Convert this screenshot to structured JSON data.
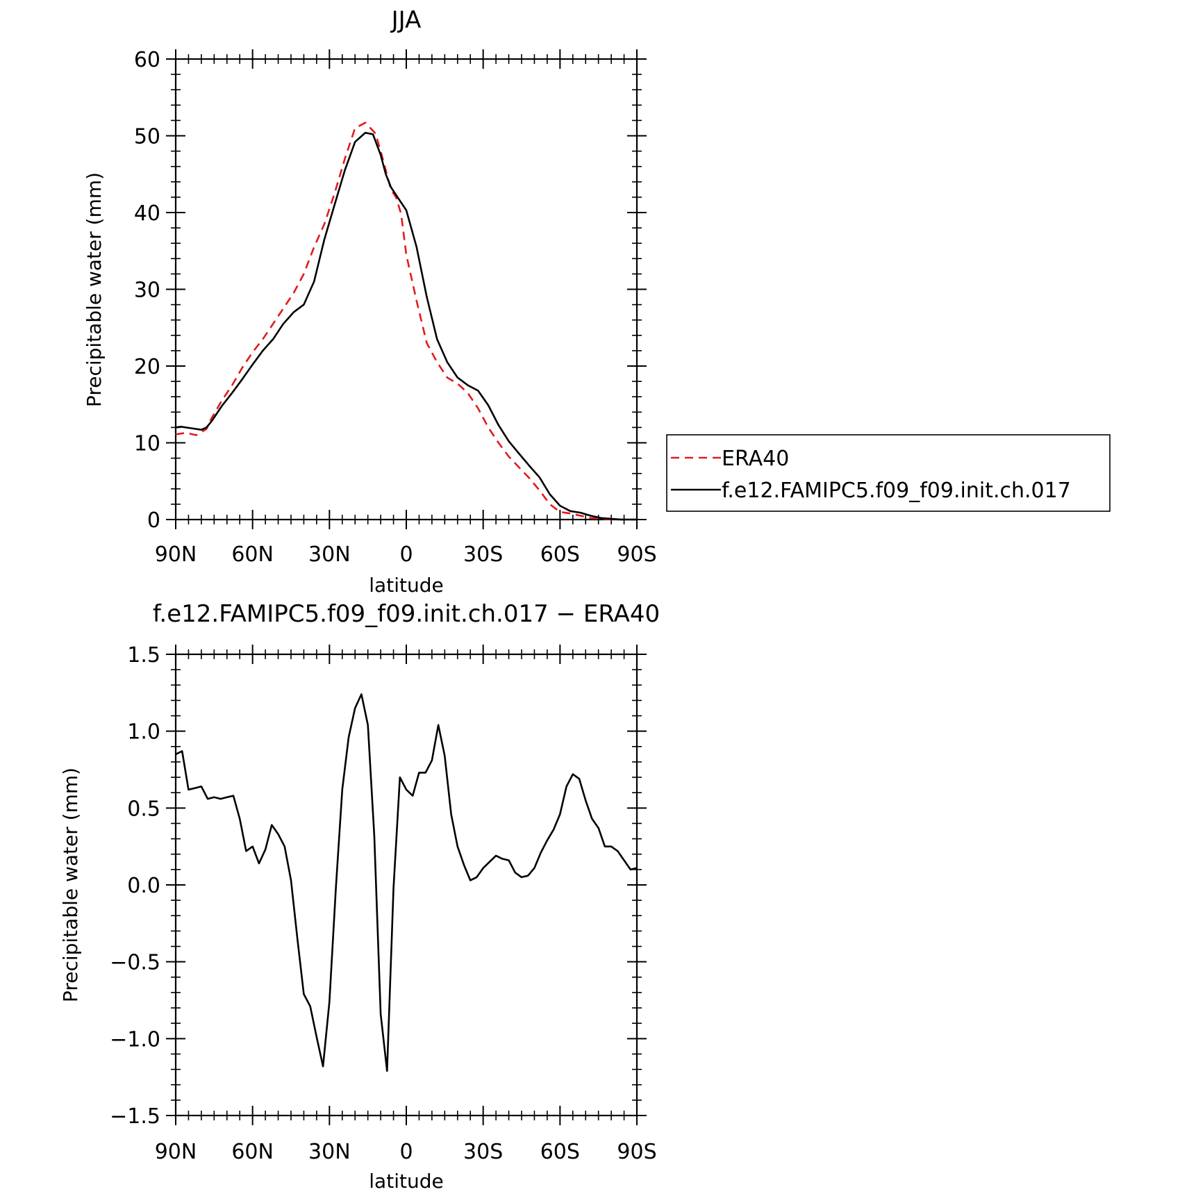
{
  "chart_data": [
    {
      "type": "line",
      "title": "JJA",
      "xlabel": "latitude",
      "ylabel": "Precipitable water (mm)",
      "xlim": [
        90,
        -90
      ],
      "ylim": [
        0,
        60
      ],
      "xticks": [
        {
          "value": 90,
          "label": "90N"
        },
        {
          "value": 60,
          "label": "60N"
        },
        {
          "value": 30,
          "label": "30N"
        },
        {
          "value": 0,
          "label": "0"
        },
        {
          "value": -30,
          "label": "30S"
        },
        {
          "value": -60,
          "label": "60S"
        },
        {
          "value": -90,
          "label": "90S"
        }
      ],
      "yticks": [
        {
          "value": 0,
          "label": "0"
        },
        {
          "value": 10,
          "label": "10"
        },
        {
          "value": 20,
          "label": "20"
        },
        {
          "value": 30,
          "label": "30"
        },
        {
          "value": 40,
          "label": "40"
        },
        {
          "value": 50,
          "label": "50"
        },
        {
          "value": 60,
          "label": "60"
        }
      ],
      "grid": false,
      "legend_position": "right",
      "series": [
        {
          "name": "ERA40",
          "color": "#e31a1c",
          "style": "dashed",
          "x": [
            90,
            86,
            82,
            78,
            76,
            72,
            68,
            64,
            60,
            56,
            52,
            48,
            44,
            40,
            36,
            32,
            28,
            24,
            20,
            16,
            12,
            10,
            8,
            6,
            4,
            2,
            0,
            -4,
            -8,
            -12,
            -16,
            -20,
            -24,
            -28,
            -32,
            -36,
            -40,
            -44,
            -48,
            -52,
            -56,
            -60,
            -64,
            -68,
            -72,
            -76,
            -80,
            -84,
            -88,
            -90
          ],
          "y": [
            11.1,
            11.3,
            11.0,
            11.8,
            13.2,
            15.5,
            17.5,
            19.8,
            21.8,
            23.5,
            25.5,
            27.5,
            29.5,
            32.0,
            35.5,
            38.5,
            42.5,
            47.0,
            51.0,
            51.7,
            50.3,
            48.0,
            45.5,
            43.0,
            42.0,
            39.8,
            34.5,
            28.5,
            23.0,
            20.5,
            18.5,
            17.7,
            16.5,
            14.5,
            12.0,
            10.0,
            8.2,
            6.8,
            5.4,
            3.8,
            2.0,
            1.0,
            0.8,
            0.5,
            0.2,
            0.1,
            0.0,
            0.0,
            0.0,
            0.0
          ]
        },
        {
          "name": "f.e12.FAMIPC5.f09_f09.init.ch.017",
          "color": "#000000",
          "style": "solid",
          "x": [
            90,
            88,
            84,
            80,
            78,
            76,
            72,
            68,
            64,
            60,
            56,
            52,
            48,
            44,
            40,
            36,
            32,
            28,
            24,
            20,
            16,
            13,
            10,
            8,
            6,
            4,
            0,
            -4,
            -8,
            -12,
            -16,
            -20,
            -24,
            -28,
            -32,
            -36,
            -40,
            -44,
            -48,
            -52,
            -56,
            -60,
            -64,
            -68,
            -72,
            -76,
            -80,
            -84,
            -88,
            -90
          ],
          "y": [
            12.0,
            12.1,
            11.9,
            11.7,
            12.0,
            12.8,
            14.8,
            16.5,
            18.3,
            20.2,
            22.0,
            23.5,
            25.5,
            27.0,
            28.0,
            31.0,
            36.5,
            41.0,
            45.5,
            49.2,
            50.4,
            50.2,
            47.5,
            45.0,
            43.3,
            42.3,
            40.3,
            35.5,
            29.0,
            23.5,
            20.5,
            18.5,
            17.5,
            16.8,
            14.9,
            12.3,
            10.2,
            8.6,
            7.0,
            5.5,
            3.3,
            1.8,
            1.1,
            0.9,
            0.5,
            0.2,
            0.1,
            0.0,
            0.0,
            0.0
          ]
        }
      ]
    },
    {
      "type": "line",
      "title": "f.e12.FAMIPC5.f09_f09.init.ch.017 − ERA40",
      "xlabel": "latitude",
      "ylabel": "Precipitable water (mm)",
      "xlim": [
        90,
        -90
      ],
      "ylim": [
        -1.5,
        1.5
      ],
      "xticks": [
        {
          "value": 90,
          "label": "90N"
        },
        {
          "value": 60,
          "label": "60N"
        },
        {
          "value": 30,
          "label": "30N"
        },
        {
          "value": 0,
          "label": "0"
        },
        {
          "value": -30,
          "label": "30S"
        },
        {
          "value": -60,
          "label": "60S"
        },
        {
          "value": -90,
          "label": "90S"
        }
      ],
      "yticks": [
        {
          "value": -1.5,
          "label": "−1.5"
        },
        {
          "value": -1.0,
          "label": "−1.0"
        },
        {
          "value": -0.5,
          "label": "−0.5"
        },
        {
          "value": 0.0,
          "label": "0.0"
        },
        {
          "value": 0.5,
          "label": "0.5"
        },
        {
          "value": 1.0,
          "label": "1.0"
        },
        {
          "value": 1.5,
          "label": "1.5"
        }
      ],
      "grid": false,
      "series": [
        {
          "color": "#000000",
          "style": "solid",
          "x": [
            90,
            87.5,
            85,
            82.5,
            80,
            77.5,
            75,
            72.5,
            70,
            67.5,
            65,
            62.5,
            60,
            57.5,
            55,
            52.5,
            50,
            47.5,
            45,
            42.5,
            40,
            37.5,
            35,
            32.5,
            30,
            27.5,
            25,
            22.5,
            20,
            17.5,
            15,
            12.5,
            10,
            7.5,
            5,
            2.5,
            0,
            -2.5,
            -5,
            -7.5,
            -10,
            -12.5,
            -15,
            -17.5,
            -20,
            -22.5,
            -25,
            -27.5,
            -30,
            -32.5,
            -35,
            -37.5,
            -40,
            -42.5,
            -45,
            -47.5,
            -50,
            -52.5,
            -55,
            -57.5,
            -60,
            -62.5,
            -65,
            -67.5,
            -70,
            -72.5,
            -75,
            -77.5,
            -80,
            -82.5,
            -85,
            -87.5,
            -90
          ],
          "y": [
            0.85,
            0.87,
            0.62,
            0.63,
            0.64,
            0.56,
            0.57,
            0.56,
            0.57,
            0.58,
            0.43,
            0.22,
            0.25,
            0.14,
            0.23,
            0.39,
            0.33,
            0.25,
            0.03,
            -0.35,
            -0.71,
            -0.79,
            -0.99,
            -1.18,
            -0.76,
            -0.02,
            0.62,
            0.96,
            1.15,
            1.24,
            1.04,
            0.32,
            -0.84,
            -1.21,
            -0.02,
            0.7,
            0.62,
            0.58,
            0.73,
            0.73,
            0.81,
            1.04,
            0.84,
            0.46,
            0.25,
            0.13,
            0.03,
            0.05,
            0.11,
            0.15,
            0.19,
            0.17,
            0.16,
            0.08,
            0.05,
            0.06,
            0.11,
            0.21,
            0.29,
            0.36,
            0.46,
            0.64,
            0.72,
            0.69,
            0.55,
            0.43,
            0.37,
            0.25,
            0.25,
            0.22,
            0.16,
            0.1,
            0.11
          ]
        }
      ]
    }
  ]
}
